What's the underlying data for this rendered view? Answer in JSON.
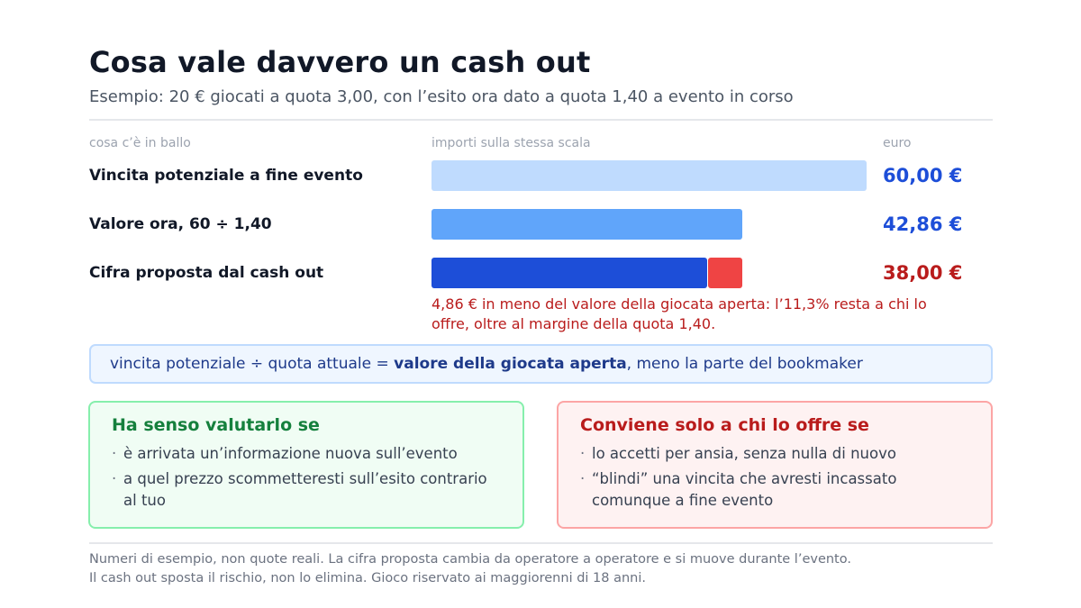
{
  "header": {
    "title": "Cosa vale davvero un cash out",
    "subtitle": "Esempio: 20 € giocati a quota 3,00, con l’esito ora dato a quota 1,40 a evento in corso"
  },
  "columns": {
    "label": "cosa c’è in ballo",
    "bars": "importi sulla stessa scala",
    "value": "euro"
  },
  "colors": {
    "potential": "#bfdbfe",
    "now": "#60a5fa",
    "offer": "#1d4ed8",
    "gap": "#ef4444",
    "blue_text": "#1d4ed8",
    "red_text": "#b91c1c"
  },
  "chart_data": {
    "type": "bar",
    "orientation": "horizontal",
    "categories": [
      "Vincita potenziale a fine evento",
      "Valore ora, 60 ÷ 1,40",
      "Cifra proposta dal cash out"
    ],
    "values": [
      60.0,
      42.86,
      38.0
    ],
    "value_labels": [
      "60,00 €",
      "42,86 €",
      "38,00 €"
    ],
    "gap_segment": {
      "category": "Cifra proposta dal cash out",
      "from": 38.0,
      "to": 42.86
    },
    "xlim": [
      0,
      60
    ],
    "annotation": "4,86 € in meno del valore della giocata aperta: l’11,3% resta a chi lo offre, oltre al margine della quota 1,40."
  },
  "formula": {
    "before": "vincita potenziale ÷ quota attuale = ",
    "bold": "valore della giocata aperta",
    "after": ", meno la parte del bookmaker"
  },
  "cards": {
    "good": {
      "title": "Ha senso valutarlo se",
      "items": [
        "è arrivata un’informazione nuova sull’evento",
        "a quel prezzo scommetteresti sull’esito contrario al tuo"
      ]
    },
    "bad": {
      "title": "Conviene solo a chi lo offre se",
      "items": [
        "lo accetti per ansia, senza nulla di nuovo",
        "“blindi” una vincita che avresti incassato comunque a fine evento"
      ]
    }
  },
  "footer": {
    "line1": "Numeri di esempio, non quote reali. La cifra proposta cambia da operatore a operatore e si muove durante l’evento.",
    "line2": "Il cash out sposta il rischio, non lo elimina. Gioco riservato ai maggiorenni di 18 anni."
  }
}
